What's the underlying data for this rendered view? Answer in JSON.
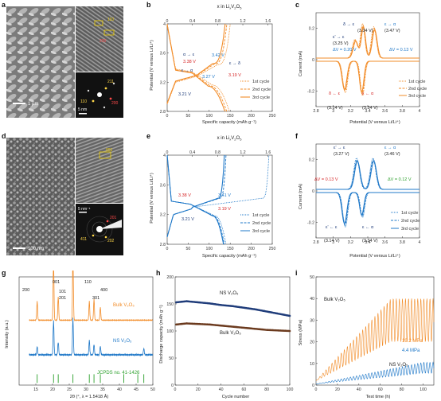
{
  "panels": {
    "a": {
      "label": "a",
      "scalebar": "1 µm",
      "scalebar_tem": "5 nm",
      "scalebar_saed": "",
      "hrtem_labels": [
        "110",
        "200"
      ],
      "saed_labels": [
        "211",
        "110",
        "200"
      ]
    },
    "b": {
      "label": "b",
      "top_axis": "x in Li",
      "top_axis_sub": "x",
      "top_axis_suffix": "V",
      "top_axis_sub2": "2",
      "top_axis_end": "O",
      "top_axis_sub3": "5",
      "xlabel": "Specific capacity (mAh g⁻¹)",
      "ylabel": "Potential (V versus Li/Li⁺)",
      "legend": [
        "1st cycle",
        "2nd cycle",
        "3rd cycle"
      ],
      "annotations": [
        "α → ε",
        "3.38 V",
        "3.42 V",
        "3.27 V",
        "3.19 V",
        "ε → δ",
        "3.21 V",
        "ε → α"
      ]
    },
    "c": {
      "label": "c",
      "xlabel": "Potential (V versus Li/Li⁺)",
      "ylabel": "Current (mA)",
      "legend": [
        "1st cycle",
        "2nd cycle",
        "3rd cycle"
      ],
      "annotations": [
        "δ → ε",
        "(3.34 V)",
        "ε → α",
        "(3.47 V)",
        "ε' → ε",
        "(3.25 V)",
        "ΔV = 0.20 V",
        "ΔV = 0.13 V",
        "δ ← ε",
        "(3.14 V)",
        "ε ← α",
        "(3.34 V)",
        "ε' ← ε",
        "(3.14 V)"
      ]
    },
    "d": {
      "label": "d",
      "scalebar": "100 nm",
      "scalebar_tem": "5 nm⁻¹",
      "hrtem_labels": [
        "001"
      ],
      "saed_labels": [
        "201",
        "202",
        "411"
      ]
    },
    "e": {
      "label": "e",
      "top_axis": "x in Li",
      "xlabel": "Specific capacity (mAh g⁻¹)",
      "ylabel": "Potential (V versus Li/Li⁺)",
      "legend": [
        "1st cycle",
        "2nd cycle",
        "3rd cycle"
      ],
      "annotations": [
        "3.38 V",
        "3.41 V",
        "3.19 V",
        "3.21 V"
      ]
    },
    "f": {
      "label": "f",
      "xlabel": "Potential (V versus Li/Li⁺)",
      "ylabel": "Current (mA)",
      "legend": [
        "1st cycle",
        "2nd cycle",
        "3rd cycle"
      ],
      "annotations": [
        "ε' → ε",
        "(3.27 V)",
        "ε → α",
        "(3.46 V)",
        "ΔV = 0.13 V",
        "ΔV = 0.12 V",
        "ε' ← ε",
        "(3.14 V)",
        "ε ← α",
        "(3.34 V)"
      ]
    },
    "g": {
      "label": "g",
      "xlabel": "2θ (°, λ = 1.5418 Å)",
      "ylabel": "Intensity (a.u.)",
      "series": [
        "Bulk V₂O₅",
        "NS V₂O₅",
        "JCPDS no. 41-1426"
      ],
      "peaks": [
        "001",
        "110",
        "200",
        "101",
        "400",
        "201",
        "301"
      ]
    },
    "h": {
      "label": "h",
      "xlabel": "Cycle number",
      "ylabel": "Discharge capacity (mAh g⁻¹)",
      "series": [
        "NS V₂O₅",
        "Bulk V₂O₅"
      ]
    },
    "i": {
      "label": "i",
      "xlabel": "Test time (h)",
      "ylabel": "Stress (MPa)",
      "series": [
        "Bulk V₂O₅",
        "NS V₂O₅"
      ],
      "annotations": [
        "19.2 MPa",
        "4.4 MPa"
      ]
    }
  },
  "colors": {
    "orange": "#f28c28",
    "blue": "#1f78c8",
    "red": "#d62728",
    "green": "#2ca02c",
    "navy": "#1f3c7a",
    "brown": "#6b3a1e"
  },
  "chart_data": [
    {
      "type": "line",
      "panel": "b",
      "title": "",
      "xlabel": "Specific capacity (mAh g⁻¹)",
      "ylabel": "Potential (V versus Li/Li⁺)",
      "xlim": [
        0,
        250
      ],
      "ylim": [
        2.8,
        4.0
      ],
      "top_axis": {
        "label": "x in LixV2O5",
        "range": [
          0,
          1.6
        ]
      },
      "series": [
        {
          "name": "1st cycle"
        },
        {
          "name": "2nd cycle"
        },
        {
          "name": "3rd cycle"
        }
      ]
    },
    {
      "type": "line",
      "panel": "c",
      "xlabel": "Potential (V versus Li/Li⁺)",
      "ylabel": "Current (mA)",
      "xlim": [
        2.8,
        4.0
      ],
      "series": [
        {
          "name": "1st cycle"
        },
        {
          "name": "2nd cycle"
        },
        {
          "name": "3rd cycle"
        }
      ]
    },
    {
      "type": "line",
      "panel": "e",
      "xlabel": "Specific capacity (mAh g⁻¹)",
      "ylabel": "Potential (V versus Li/Li⁺)",
      "xlim": [
        0,
        250
      ],
      "ylim": [
        2.8,
        4.0
      ],
      "series": [
        {
          "name": "1st cycle"
        },
        {
          "name": "2nd cycle"
        },
        {
          "name": "3rd cycle"
        }
      ]
    },
    {
      "type": "line",
      "panel": "f",
      "xlabel": "Potential (V versus Li/Li⁺)",
      "ylabel": "Current (mA)",
      "xlim": [
        2.8,
        4.0
      ],
      "series": [
        {
          "name": "1st cycle"
        },
        {
          "name": "2nd cycle"
        },
        {
          "name": "3rd cycle"
        }
      ]
    },
    {
      "type": "line",
      "panel": "g",
      "xlabel": "2θ (°, λ = 1.5418 Å)",
      "ylabel": "Intensity (a.u.)",
      "xlim": [
        10,
        50
      ],
      "series": [
        {
          "name": "Bulk V₂O₅"
        },
        {
          "name": "NS V₂O₅"
        },
        {
          "name": "JCPDS no. 41-1426"
        }
      ]
    },
    {
      "type": "scatter",
      "panel": "h",
      "xlabel": "Cycle number",
      "ylabel": "Discharge capacity (mAh g⁻¹)",
      "xlim": [
        0,
        100
      ],
      "ylim": [
        0,
        200
      ],
      "series": [
        {
          "name": "NS V₂O₅",
          "x": [
            1,
            10,
            20,
            30,
            40,
            50,
            60,
            70,
            80,
            90,
            100
          ],
          "values": [
            153,
            155,
            153,
            151,
            148,
            146,
            143,
            140,
            136,
            132,
            128
          ]
        },
        {
          "name": "Bulk V₂O₅",
          "x": [
            1,
            10,
            20,
            30,
            40,
            50,
            60,
            70,
            80,
            90,
            100
          ],
          "values": [
            112,
            114,
            113,
            112,
            110,
            108,
            106,
            104,
            102,
            101,
            100
          ]
        }
      ]
    },
    {
      "type": "line",
      "panel": "i",
      "xlabel": "Test time (h)",
      "ylabel": "Stress (MPa)",
      "xlim": [
        0,
        110
      ],
      "ylim": [
        0,
        50
      ],
      "series": [
        {
          "name": "Bulk V₂O₅"
        },
        {
          "name": "NS V₂O₅"
        }
      ],
      "annotations": [
        "19.2 MPa",
        "4.4 MPa"
      ]
    }
  ]
}
